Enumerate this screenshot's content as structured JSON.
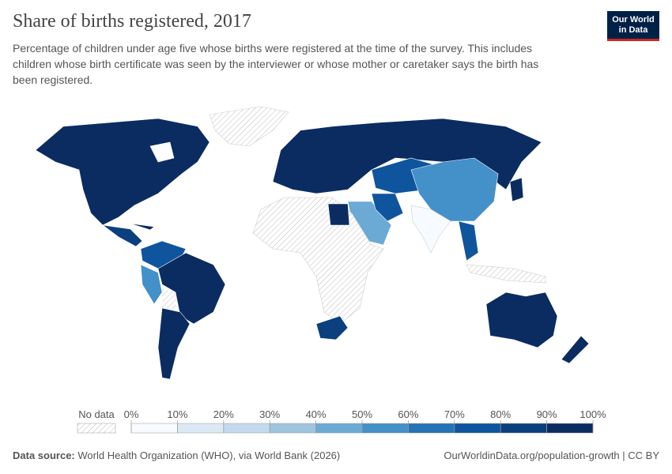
{
  "header": {
    "title": "Share of births registered, 2017",
    "subtitle": "Percentage of children under age five whose births were registered at the time of the survey. This includes children whose birth certificate was seen by the interviewer or whose mother or caretaker says the birth has been registered.",
    "logo": [
      "Our World",
      "in Data"
    ]
  },
  "legend": {
    "no_data": "No data",
    "ticks": [
      {
        "value": 0,
        "label": "0%"
      },
      {
        "value": 10,
        "label": "10%"
      },
      {
        "value": 20,
        "label": "20%"
      },
      {
        "value": 30,
        "label": "30%"
      },
      {
        "value": 40,
        "label": "40%"
      },
      {
        "value": 50,
        "label": "50%"
      },
      {
        "value": 60,
        "label": "60%"
      },
      {
        "value": 70,
        "label": "70%"
      },
      {
        "value": 80,
        "label": "80%"
      },
      {
        "value": 90,
        "label": "90%"
      },
      {
        "value": 100,
        "label": "100%"
      }
    ],
    "colors": [
      "#f7fbff",
      "#dbe9f6",
      "#c4d9ec",
      "#9dc5e0",
      "#6aaad5",
      "#4490c8",
      "#2473b6",
      "#0e559d",
      "#0b3f7e",
      "#0b2c61"
    ]
  },
  "footer": {
    "source_label": "Data source:",
    "source": "World Health Organization (WHO), via World Bank (2026)",
    "url": "OurWorldinData.org/population-growth | CC BY"
  }
}
